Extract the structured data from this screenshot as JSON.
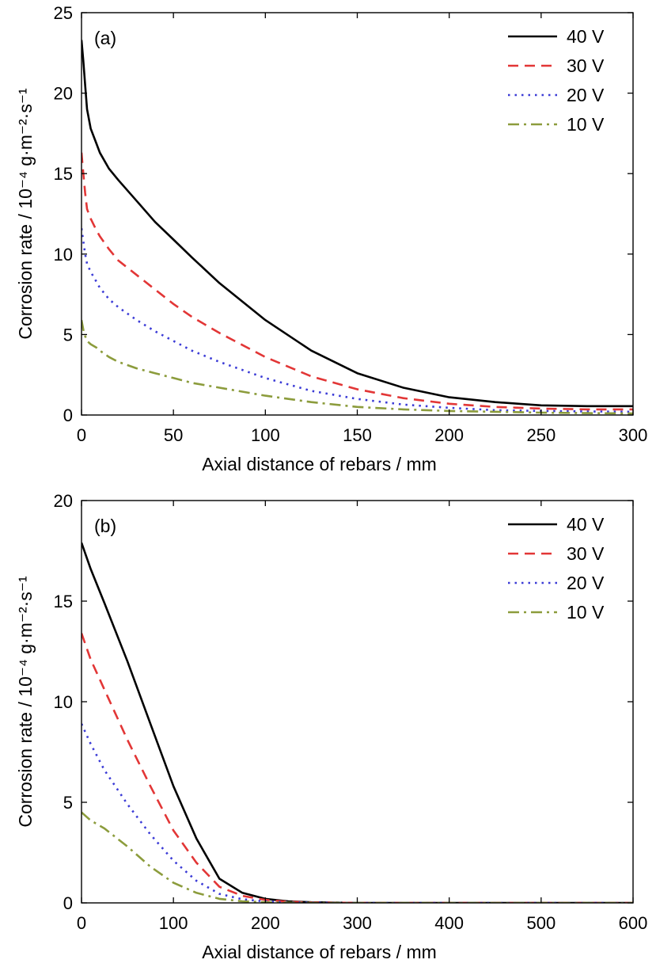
{
  "chart_data": [
    {
      "type": "line",
      "panel_label": "(a)",
      "xlabel": "Axial distance of rebars / mm",
      "ylabel": "Corrosion rate / 10⁻⁴ g·m⁻²·s⁻¹",
      "xlim": [
        0,
        300
      ],
      "ylim": [
        0,
        25
      ],
      "xticks": [
        0,
        50,
        100,
        150,
        200,
        250,
        300
      ],
      "yticks": [
        0,
        5,
        10,
        15,
        20,
        25
      ],
      "grid": false,
      "legend_position": "top-right",
      "series": [
        {
          "name": "40 V",
          "color": "#000000",
          "dash": "solid",
          "x": [
            0,
            1,
            2,
            3,
            5,
            8,
            10,
            15,
            20,
            30,
            40,
            50,
            60,
            75,
            100,
            125,
            150,
            175,
            200,
            225,
            250,
            275,
            300
          ],
          "y": [
            23.3,
            22.0,
            20.5,
            19.0,
            17.8,
            16.9,
            16.3,
            15.3,
            14.6,
            13.3,
            12.0,
            10.9,
            9.8,
            8.2,
            5.9,
            4.0,
            2.6,
            1.7,
            1.1,
            0.8,
            0.6,
            0.55,
            0.55
          ]
        },
        {
          "name": "30 V",
          "color": "#e23636",
          "dash": "dashed",
          "x": [
            0,
            1,
            2,
            3,
            5,
            8,
            10,
            15,
            20,
            30,
            40,
            50,
            60,
            75,
            100,
            125,
            150,
            175,
            200,
            225,
            250,
            275,
            300
          ],
          "y": [
            16.3,
            15.0,
            13.8,
            12.8,
            12.2,
            11.5,
            11.1,
            10.3,
            9.6,
            8.7,
            7.8,
            6.9,
            6.1,
            5.1,
            3.6,
            2.4,
            1.6,
            1.05,
            0.7,
            0.5,
            0.4,
            0.35,
            0.35
          ]
        },
        {
          "name": "20 V",
          "color": "#3b3bd6",
          "dash": "dotted",
          "x": [
            0,
            1,
            2,
            3,
            5,
            8,
            10,
            15,
            20,
            30,
            40,
            50,
            60,
            75,
            100,
            125,
            150,
            175,
            200,
            225,
            250,
            275,
            300
          ],
          "y": [
            11.6,
            10.8,
            10.0,
            9.4,
            8.9,
            8.3,
            7.9,
            7.2,
            6.7,
            5.9,
            5.2,
            4.6,
            4.0,
            3.3,
            2.3,
            1.5,
            1.0,
            0.65,
            0.45,
            0.3,
            0.25,
            0.22,
            0.2
          ]
        },
        {
          "name": "10 V",
          "color": "#8c9c3c",
          "dash": "dashdot",
          "x": [
            0,
            1,
            2,
            3,
            5,
            8,
            10,
            15,
            20,
            30,
            40,
            50,
            60,
            75,
            100,
            125,
            150,
            175,
            200,
            225,
            250,
            275,
            300
          ],
          "y": [
            5.9,
            5.3,
            4.9,
            4.6,
            4.4,
            4.2,
            4.0,
            3.6,
            3.3,
            2.9,
            2.6,
            2.3,
            2.0,
            1.7,
            1.2,
            0.8,
            0.5,
            0.35,
            0.25,
            0.2,
            0.15,
            0.12,
            0.1
          ]
        }
      ]
    },
    {
      "type": "line",
      "panel_label": "(b)",
      "xlabel": "Axial distance of rebars / mm",
      "ylabel": "Corrosion rate / 10⁻⁴ g·m⁻²·s⁻¹",
      "xlim": [
        0,
        600
      ],
      "ylim": [
        0,
        20
      ],
      "xticks": [
        0,
        100,
        200,
        300,
        400,
        500,
        600
      ],
      "yticks": [
        0,
        5,
        10,
        15,
        20
      ],
      "grid": false,
      "legend_position": "top-right",
      "series": [
        {
          "name": "40 V",
          "color": "#000000",
          "dash": "solid",
          "x": [
            0,
            10,
            25,
            50,
            75,
            100,
            125,
            150,
            175,
            200,
            225,
            250,
            300,
            400,
            500,
            600
          ],
          "y": [
            17.9,
            16.6,
            14.9,
            12.0,
            8.9,
            5.8,
            3.2,
            1.2,
            0.5,
            0.2,
            0.08,
            0.03,
            0.0,
            0.0,
            0.0,
            0.0
          ]
        },
        {
          "name": "30 V",
          "color": "#e23636",
          "dash": "dashed",
          "x": [
            0,
            10,
            25,
            50,
            75,
            100,
            125,
            150,
            175,
            200,
            225,
            250,
            300,
            400,
            500,
            600
          ],
          "y": [
            13.4,
            12.1,
            10.6,
            8.1,
            5.8,
            3.6,
            2.0,
            0.8,
            0.35,
            0.15,
            0.06,
            0.02,
            0.0,
            0.0,
            0.0,
            0.0
          ]
        },
        {
          "name": "20 V",
          "color": "#3b3bd6",
          "dash": "dotted",
          "x": [
            0,
            10,
            25,
            50,
            75,
            100,
            125,
            150,
            175,
            200,
            225,
            250,
            300,
            400,
            500,
            600
          ],
          "y": [
            8.9,
            7.9,
            6.6,
            4.9,
            3.4,
            2.1,
            1.1,
            0.45,
            0.18,
            0.07,
            0.03,
            0.01,
            0.0,
            0.0,
            0.0,
            0.0
          ]
        },
        {
          "name": "10 V",
          "color": "#8c9c3c",
          "dash": "dashdot",
          "x": [
            0,
            10,
            25,
            50,
            75,
            100,
            125,
            150,
            175,
            200,
            225,
            250,
            300,
            400,
            500,
            600
          ],
          "y": [
            4.5,
            4.1,
            3.7,
            2.8,
            1.8,
            1.0,
            0.5,
            0.2,
            0.08,
            0.03,
            0.01,
            0.0,
            0.0,
            0.0,
            0.0,
            0.0
          ]
        }
      ]
    }
  ]
}
